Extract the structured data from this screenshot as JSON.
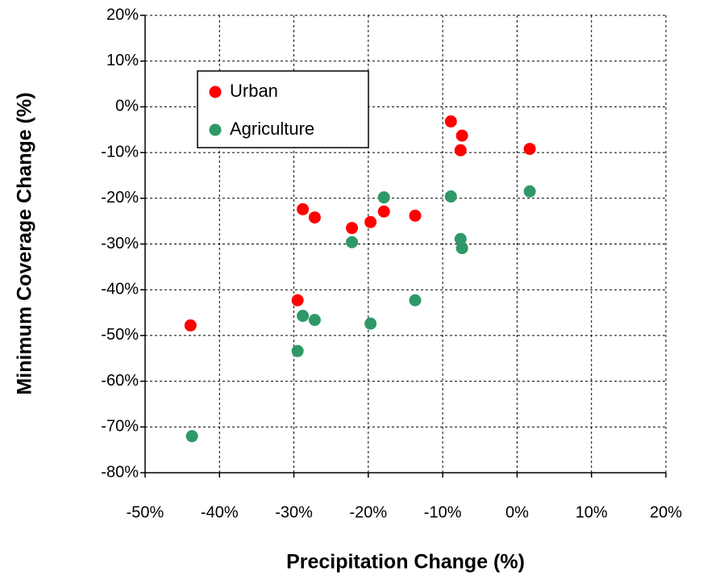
{
  "chart_data": {
    "type": "scatter",
    "x_label": "Precipitation Change (%)",
    "y_label": "Minimum Coverage Change (%)",
    "xlim": [
      -50,
      20
    ],
    "ylim": [
      -80,
      20
    ],
    "xticks": [
      {
        "value": -50,
        "label": "-50%"
      },
      {
        "value": -40,
        "label": "-40%"
      },
      {
        "value": -30,
        "label": "-30%"
      },
      {
        "value": -20,
        "label": "-20%"
      },
      {
        "value": -10,
        "label": "-10%"
      },
      {
        "value": 0,
        "label": "0%"
      },
      {
        "value": 10,
        "label": "10%"
      },
      {
        "value": 20,
        "label": "20%"
      }
    ],
    "yticks": [
      {
        "value": -80,
        "label": "-80%"
      },
      {
        "value": -70,
        "label": "-70%"
      },
      {
        "value": -60,
        "label": "-60%"
      },
      {
        "value": -50,
        "label": "-50%"
      },
      {
        "value": -40,
        "label": "-40%"
      },
      {
        "value": -30,
        "label": "-30%"
      },
      {
        "value": -20,
        "label": "-20%"
      },
      {
        "value": -10,
        "label": "-10%"
      },
      {
        "value": 0,
        "label": "0%"
      },
      {
        "value": 10,
        "label": "10%"
      },
      {
        "value": 20,
        "label": "20%"
      }
    ],
    "grid": true,
    "legend": "upper left",
    "series": [
      {
        "name": "Urban",
        "color": "#ff0000",
        "x": [
          -43.9,
          -28.8,
          -27.2,
          -22.2,
          -19.7,
          -17.9,
          -13.7,
          -29.5,
          -8.9,
          -7.4,
          -7.6,
          1.7
        ],
        "values": [
          -47.8,
          -22.4,
          -24.2,
          -26.5,
          -25.2,
          -22.9,
          -23.8,
          -42.3,
          -3.2,
          -6.3,
          -9.5,
          -9.2
        ]
      },
      {
        "name": "Agriculture",
        "color": "#2e9966",
        "x": [
          -43.7,
          -29.5,
          -28.8,
          -27.2,
          -22.2,
          -19.7,
          -17.9,
          -13.7,
          -8.9,
          -7.6,
          -7.4,
          1.7
        ],
        "values": [
          -72.0,
          -53.4,
          -45.7,
          -46.6,
          -29.6,
          -47.4,
          -19.8,
          -42.3,
          -19.6,
          -28.9,
          -30.9,
          -18.5
        ]
      }
    ]
  }
}
